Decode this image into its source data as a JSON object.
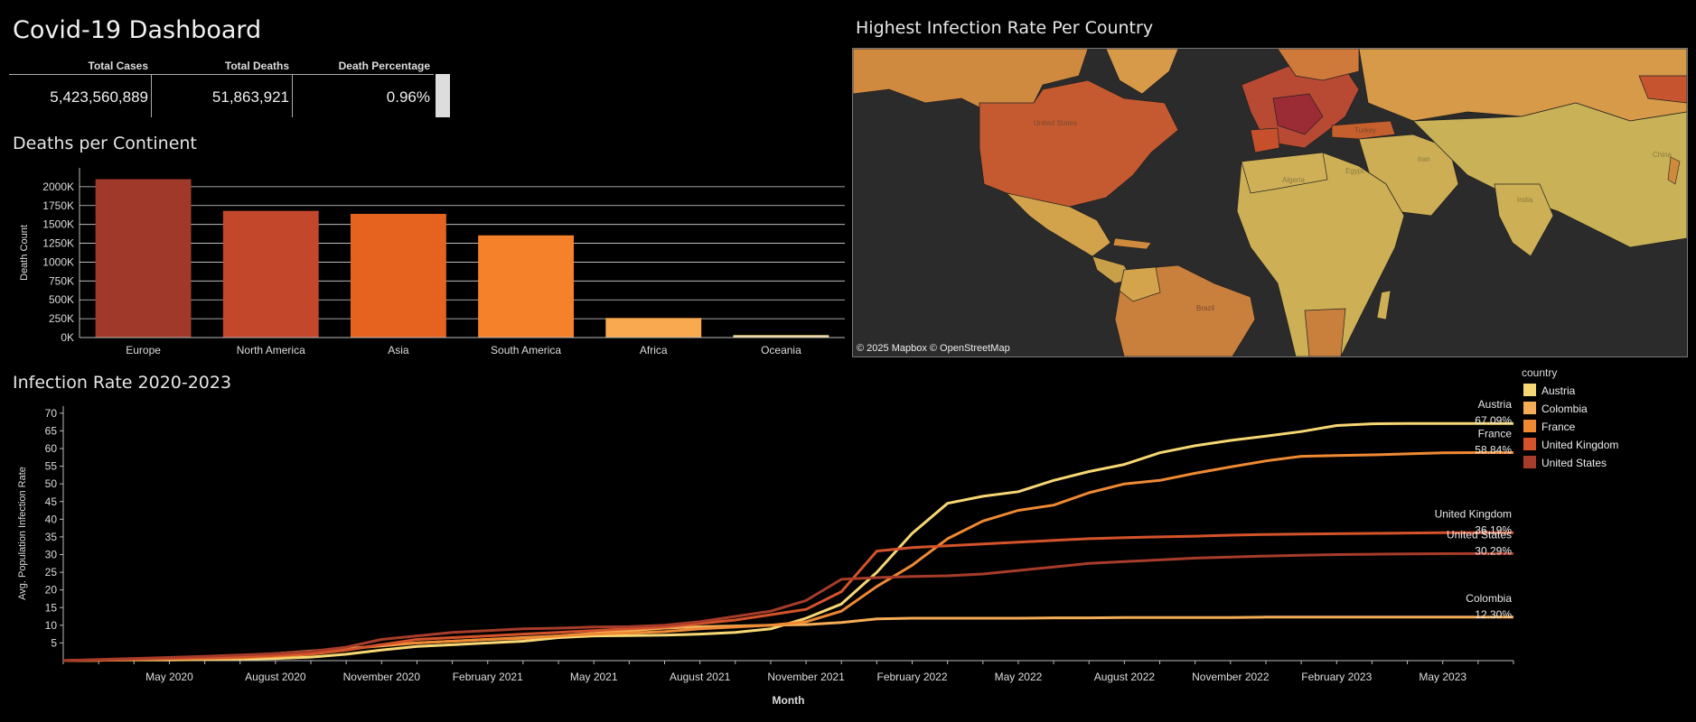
{
  "dashboard": {
    "title": "Covid-19 Dashboard"
  },
  "kpi": {
    "headers": [
      "Total Cases",
      "Total Deaths",
      "Death Percentage"
    ],
    "values": [
      "5,423,560,889",
      "51,863,921",
      "0.96%"
    ]
  },
  "map": {
    "title": "Highest Infection Rate Per Country",
    "attribution": "© 2025 Mapbox  © OpenStreetMap",
    "labels": [
      "United States",
      "Brazil",
      "Algeria",
      "Egypt",
      "India",
      "China",
      "Iran",
      "Turkey"
    ]
  },
  "legend": {
    "title": "country",
    "items": [
      {
        "name": "Austria",
        "color": "#f7d774"
      },
      {
        "name": "Colombia",
        "color": "#f5ad55"
      },
      {
        "name": "France",
        "color": "#ef8a33"
      },
      {
        "name": "United Kingdom",
        "color": "#d4532b"
      },
      {
        "name": "United States",
        "color": "#a83c2a"
      }
    ]
  },
  "chart_data": [
    {
      "type": "bar",
      "title": "Deaths per Continent",
      "ylabel": "Death Count",
      "categories": [
        "Europe",
        "North America",
        "Asia",
        "South America",
        "Africa",
        "Oceania"
      ],
      "values": [
        2100000,
        1680000,
        1640000,
        1355000,
        259000,
        32000
      ],
      "ylim": [
        0,
        2250000
      ],
      "yticks": [
        0,
        250000,
        500000,
        750000,
        1000000,
        1250000,
        1500000,
        1750000,
        2000000
      ],
      "ytick_labels": [
        "0K",
        "250K",
        "500K",
        "750K",
        "1000K",
        "1250K",
        "1500K",
        "1750K",
        "2000K"
      ],
      "colors": [
        "#a0392a",
        "#c3472b",
        "#e5621f",
        "#f5822b",
        "#f9a94f",
        "#f7e0a0"
      ],
      "grid": true
    },
    {
      "type": "line",
      "title": "Infection Rate 2020-2023",
      "xlabel": "Month",
      "ylabel": "Avg. Population Infection Rate",
      "ylim": [
        0,
        72
      ],
      "yticks": [
        5,
        10,
        15,
        20,
        25,
        30,
        35,
        40,
        45,
        50,
        55,
        60,
        65,
        70
      ],
      "x": [
        "2020-02",
        "2020-03",
        "2020-04",
        "2020-05",
        "2020-06",
        "2020-07",
        "2020-08",
        "2020-09",
        "2020-10",
        "2020-11",
        "2020-12",
        "2021-01",
        "2021-02",
        "2021-03",
        "2021-04",
        "2021-05",
        "2021-06",
        "2021-07",
        "2021-08",
        "2021-09",
        "2021-10",
        "2021-11",
        "2021-12",
        "2022-01",
        "2022-02",
        "2022-03",
        "2022-04",
        "2022-05",
        "2022-06",
        "2022-07",
        "2022-08",
        "2022-09",
        "2022-10",
        "2022-11",
        "2022-12",
        "2023-01",
        "2023-02",
        "2023-03",
        "2023-04",
        "2023-05",
        "2023-06",
        "2023-07"
      ],
      "xtick_labels": [
        {
          "x": "2020-05",
          "label": "May 2020"
        },
        {
          "x": "2020-08",
          "label": "August 2020"
        },
        {
          "x": "2020-11",
          "label": "November 2020"
        },
        {
          "x": "2021-02",
          "label": "February 2021"
        },
        {
          "x": "2021-05",
          "label": "May 2021"
        },
        {
          "x": "2021-08",
          "label": "August 2021"
        },
        {
          "x": "2021-11",
          "label": "November 2021"
        },
        {
          "x": "2022-02",
          "label": "February 2022"
        },
        {
          "x": "2022-05",
          "label": "May 2022"
        },
        {
          "x": "2022-08",
          "label": "August 2022"
        },
        {
          "x": "2022-11",
          "label": "November 2022"
        },
        {
          "x": "2023-02",
          "label": "February 2023"
        },
        {
          "x": "2023-05",
          "label": "May 2023"
        }
      ],
      "series": [
        {
          "name": "Austria",
          "color": "#f7d774",
          "end_label": "Austria",
          "end_value": "67.09%",
          "values": [
            0,
            0.1,
            0.2,
            0.2,
            0.3,
            0.4,
            0.6,
            1,
            1.8,
            3,
            4,
            4.5,
            5,
            5.5,
            6.5,
            7,
            7.1,
            7.2,
            7.5,
            8,
            9,
            12,
            16,
            25,
            36,
            44.5,
            46.5,
            47.8,
            51,
            53.5,
            55.5,
            58.8,
            60.8,
            62.3,
            63.5,
            64.8,
            66.5,
            67,
            67.09,
            67.09,
            67.09,
            67.09
          ]
        },
        {
          "name": "Colombia",
          "color": "#f5ad55",
          "end_label": "Colombia",
          "end_value": "12.30%",
          "values": [
            0,
            0.1,
            0.3,
            0.5,
            0.9,
            1.4,
            2,
            2.7,
            3.4,
            4.2,
            5,
            5.5,
            6,
            6.5,
            7,
            7.7,
            8.5,
            9.2,
            9.6,
            9.8,
            10,
            10.2,
            10.8,
            11.8,
            12,
            12,
            12,
            12,
            12.1,
            12.1,
            12.2,
            12.2,
            12.2,
            12.2,
            12.3,
            12.3,
            12.3,
            12.3,
            12.3,
            12.3,
            12.3,
            12.3
          ]
        },
        {
          "name": "France",
          "color": "#ef8a33",
          "end_label": "France",
          "end_value": "58.84%",
          "values": [
            0,
            0.1,
            0.3,
            0.5,
            0.6,
            0.8,
            1.2,
            1.8,
            3,
            4.5,
            5,
            5.5,
            6,
            6.3,
            7,
            7.5,
            7.8,
            8.2,
            9,
            9.5,
            10,
            11,
            14,
            21,
            27,
            34.5,
            39.5,
            42.5,
            44,
            47.5,
            50,
            51,
            53,
            54.8,
            56.5,
            57.8,
            58,
            58.2,
            58.5,
            58.8,
            58.84,
            58.84
          ]
        },
        {
          "name": "United Kingdom",
          "color": "#d4532b",
          "end_label": "United Kingdom",
          "end_value": "36.19%",
          "values": [
            0,
            0.2,
            0.4,
            0.6,
            0.8,
            1,
            1.5,
            2,
            3,
            4.5,
            6,
            6.5,
            7,
            7.5,
            8,
            8.5,
            9,
            9.5,
            10.5,
            11.5,
            13,
            14.5,
            19.5,
            31,
            32,
            32.5,
            33,
            33.5,
            34,
            34.5,
            34.8,
            35,
            35.2,
            35.5,
            35.7,
            35.8,
            35.9,
            36,
            36.1,
            36.19,
            36.19,
            36.19
          ]
        },
        {
          "name": "United States",
          "color": "#a83c2a",
          "end_label": "United States",
          "end_value": "30.29%",
          "values": [
            0,
            0.3,
            0.6,
            0.9,
            1.2,
            1.6,
            2,
            2.6,
            3.8,
            6,
            7,
            8,
            8.5,
            9,
            9.2,
            9.5,
            9.6,
            10,
            11,
            12.5,
            14,
            17,
            23,
            23.5,
            23.8,
            24,
            24.5,
            25.5,
            26.5,
            27.5,
            28,
            28.5,
            29,
            29.3,
            29.6,
            29.8,
            30,
            30.1,
            30.2,
            30.25,
            30.29,
            30.29
          ]
        }
      ]
    }
  ]
}
